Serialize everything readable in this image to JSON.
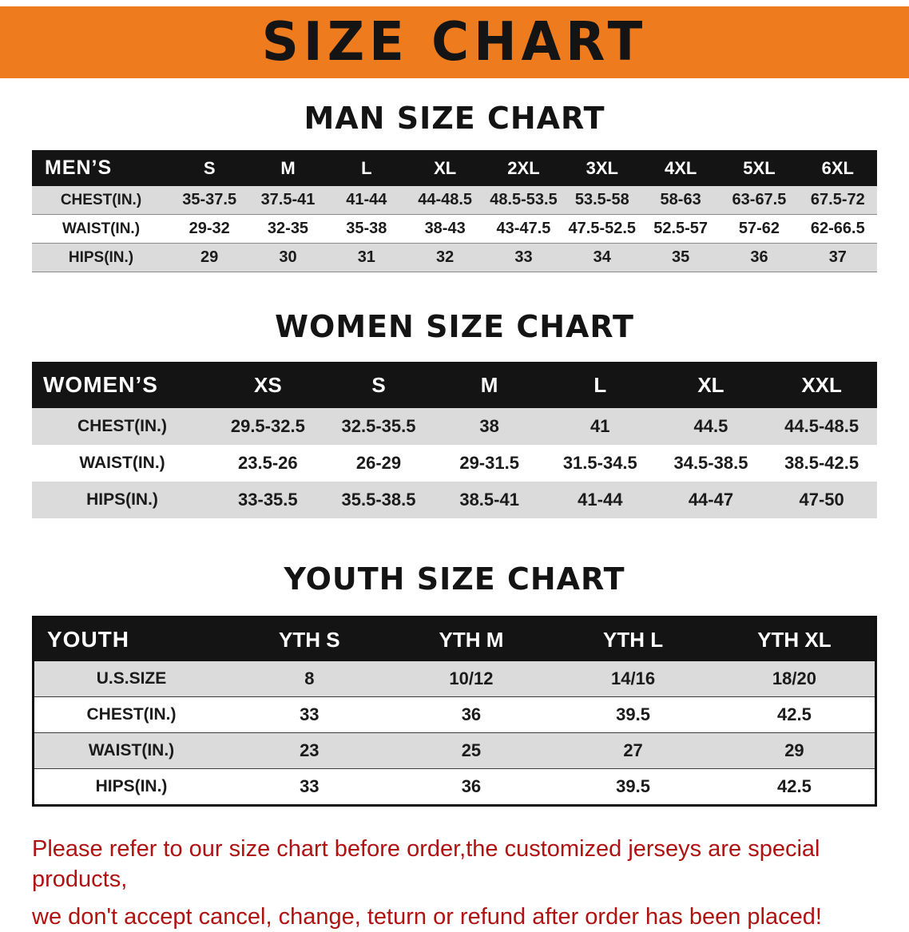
{
  "banner": {
    "title": "SIZE CHART",
    "bg_color": "#EE7B1D"
  },
  "sections": [
    {
      "heading": "MAN SIZE CHART",
      "table": {
        "header": [
          "MEN’S",
          "S",
          "M",
          "L",
          "XL",
          "2XL",
          "3XL",
          "4XL",
          "5XL",
          "6XL"
        ],
        "rows": [
          [
            "CHEST(IN.)",
            "35-37.5",
            "37.5-41",
            "41-44",
            "44-48.5",
            "48.5-53.5",
            "53.5-58",
            "58-63",
            "63-67.5",
            "67.5-72"
          ],
          [
            "WAIST(IN.)",
            "29-32",
            "32-35",
            "35-38",
            "38-43",
            "43-47.5",
            "47.5-52.5",
            "52.5-57",
            "57-62",
            "62-66.5"
          ],
          [
            "HIPS(IN.)",
            "29",
            "30",
            "31",
            "32",
            "33",
            "34",
            "35",
            "36",
            "37"
          ]
        ]
      }
    },
    {
      "heading": "WOMEN SIZE CHART",
      "table": {
        "header": [
          "WOMEN’S",
          "XS",
          "S",
          "M",
          "L",
          "XL",
          "XXL"
        ],
        "rows": [
          [
            "CHEST(IN.)",
            "29.5-32.5",
            "32.5-35.5",
            "38",
            "41",
            "44.5",
            "44.5-48.5"
          ],
          [
            "WAIST(IN.)",
            "23.5-26",
            "26-29",
            "29-31.5",
            "31.5-34.5",
            "34.5-38.5",
            "38.5-42.5"
          ],
          [
            "HIPS(IN.)",
            "33-35.5",
            "35.5-38.5",
            "38.5-41",
            "41-44",
            "44-47",
            "47-50"
          ]
        ]
      }
    },
    {
      "heading": "YOUTH SIZE CHART",
      "table": {
        "header": [
          "YOUTH",
          "YTH S",
          "YTH M",
          "YTH L",
          "YTH XL"
        ],
        "rows": [
          [
            "U.S.SIZE",
            "8",
            "10/12",
            "14/16",
            "18/20"
          ],
          [
            "CHEST(IN.)",
            "33",
            "36",
            "39.5",
            "42.5"
          ],
          [
            "WAIST(IN.)",
            "23",
            "25",
            "27",
            "29"
          ],
          [
            "HIPS(IN.)",
            "33",
            "36",
            "39.5",
            "42.5"
          ]
        ]
      }
    }
  ],
  "disclaimer": {
    "color": "#B01212",
    "lines": [
      "Please refer to our size chart before order,the customized jerseys are special products,",
      "we don't accept cancel, change, teturn or refund after order has been placed!"
    ]
  }
}
